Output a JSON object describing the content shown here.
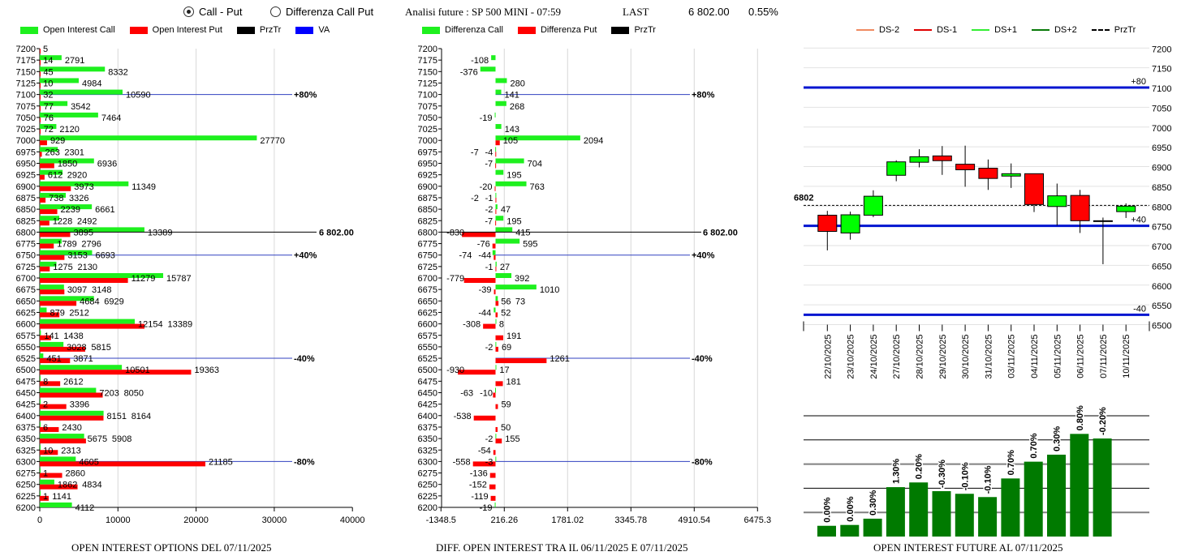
{
  "header": {
    "radio_call_put": "Call - Put",
    "radio_diff": "Differenza Call Put",
    "selected": "Call - Put",
    "analysis": "Analisi future : SP 500 MINI - 07:59",
    "last_label": "LAST",
    "last_value": "6 802.00",
    "change": "0.55%"
  },
  "colors": {
    "call": "#1ef01e",
    "put": "#ff0000",
    "przTr": "#000000",
    "va": "#0000ff",
    "ds_minus2": "#f08a60",
    "ds_minus1": "#e00000",
    "ds_plus1": "#33ee33",
    "ds_plus2": "#087a08",
    "future_bar": "#007a00"
  },
  "legend_left": [
    "Open Interest Call",
    "Open Interest Put",
    "PrzTr",
    "VA"
  ],
  "legend_mid": [
    "Differenza Call",
    "Differenza Put",
    "PrzTr"
  ],
  "legend_right": [
    "DS-2",
    "DS-1",
    "DS+1",
    "DS+2",
    "PrzTr"
  ],
  "titles": {
    "left": "OPEN INTEREST OPTIONS DEL 07/11/2025",
    "mid": "DIFF. OPEN INTEREST TRA IL 06/11/2025 E 07/11/2025",
    "right": "OPEN INTEREST FUTURE AL 07/11/2025"
  },
  "chart_data": [
    {
      "type": "bar",
      "orientation": "horizontal",
      "strikes": [
        7200,
        7175,
        7150,
        7125,
        7100,
        7075,
        7050,
        7025,
        7000,
        6975,
        6950,
        6925,
        6900,
        6875,
        6850,
        6825,
        6800,
        6775,
        6750,
        6725,
        6700,
        6675,
        6650,
        6625,
        6600,
        6575,
        6550,
        6525,
        6500,
        6475,
        6450,
        6425,
        6400,
        6375,
        6350,
        6325,
        6300,
        6275,
        6250,
        6225,
        6200
      ],
      "series": [
        {
          "name": "Open Interest Call",
          "values": [
            null,
            2791,
            8332,
            4984,
            10590,
            3542,
            7464,
            2120,
            27770,
            2301,
            6936,
            2920,
            11349,
            3326,
            6661,
            2492,
            13389,
            2796,
            6693,
            2130,
            15787,
            3097,
            6929,
            879,
            12154,
            141,
            3028,
            451,
            10501,
            8,
            7203,
            2,
            8164,
            6,
            5675,
            10,
            4605,
            1,
            1862,
            1,
            4112
          ]
        },
        {
          "name": "Open Interest Put",
          "values": [
            5,
            14,
            45,
            10,
            32,
            77,
            76,
            72,
            929,
            263,
            1850,
            612,
            3973,
            738,
            2239,
            1228,
            3895,
            1789,
            3153,
            1275,
            11279,
            3148,
            4684,
            2512,
            13389,
            1438,
            5815,
            3871,
            19363,
            2612,
            8050,
            3396,
            8151,
            2430,
            5908,
            2313,
            21185,
            2860,
            4834,
            1141,
            null
          ]
        }
      ],
      "xlim": [
        0,
        40000
      ],
      "xticks": [
        "0",
        "10000",
        "20000",
        "30000",
        "40000"
      ],
      "przTr": {
        "strike": 6800,
        "label": "6 802.00"
      },
      "va_levels": [
        {
          "strike": 7100,
          "label": "+80%"
        },
        {
          "strike": 6750,
          "label": "+40%"
        },
        {
          "strike": 6525,
          "label": "-40%"
        },
        {
          "strike": 6300,
          "label": "-80%"
        }
      ]
    },
    {
      "type": "bar",
      "orientation": "horizontal",
      "strikes": [
        7200,
        7175,
        7150,
        7125,
        7100,
        7075,
        7050,
        7025,
        7000,
        6975,
        6950,
        6925,
        6900,
        6875,
        6850,
        6825,
        6800,
        6775,
        6750,
        6725,
        6700,
        6675,
        6650,
        6625,
        6600,
        6575,
        6550,
        6525,
        6500,
        6475,
        6450,
        6425,
        6400,
        6375,
        6350,
        6325,
        6300,
        6275,
        6250,
        6225,
        6200
      ],
      "series": [
        {
          "name": "Differenza Call",
          "values": [
            null,
            -108,
            -376,
            280,
            141,
            268,
            -19,
            143,
            2094,
            -7,
            704,
            195,
            763,
            -2,
            47,
            195,
            415,
            595,
            -74,
            27,
            392,
            1010,
            56,
            -44,
            8,
            null,
            -2,
            null,
            17,
            null,
            -10,
            null,
            null,
            null,
            -2,
            null,
            -3,
            null,
            null,
            null,
            -19
          ]
        },
        {
          "name": "Differenza Put",
          "values": [
            null,
            null,
            null,
            null,
            null,
            null,
            null,
            null,
            105,
            -4,
            -7,
            null,
            -20,
            -1,
            -2,
            -7,
            -830,
            -76,
            -44,
            -1,
            -779,
            -39,
            73,
            52,
            -308,
            191,
            69,
            1261,
            -930,
            181,
            -63,
            59,
            -538,
            50,
            155,
            -54,
            -558,
            -136,
            -152,
            -119,
            null
          ]
        }
      ],
      "xlim": [
        -1348.5,
        6475.3
      ],
      "xticks": [
        "-1348.5",
        "216.26",
        "1781.02",
        "3345.78",
        "4910.54",
        "6475.3"
      ],
      "przTr": {
        "strike": 6800,
        "label": "6 802.00"
      },
      "va_levels": [
        {
          "strike": 7100,
          "label": "+80%"
        },
        {
          "strike": 6750,
          "label": "+40%"
        },
        {
          "strike": 6525,
          "label": "-40%"
        },
        {
          "strike": 6300,
          "label": "-80%"
        }
      ]
    },
    {
      "type": "candlestick",
      "dates": [
        "22/10/2025",
        "23/10/2025",
        "24/10/2025",
        "27/10/2025",
        "28/10/2025",
        "29/10/2025",
        "30/10/2025",
        "31/10/2025",
        "03/11/2025",
        "04/11/2025",
        "05/11/2025",
        "06/11/2025",
        "07/11/2025",
        "10/11/2025"
      ],
      "ohlc": [
        [
          6777,
          6788,
          6688,
          6736
        ],
        [
          6732,
          6786,
          6715,
          6778
        ],
        [
          6777,
          6840,
          6772,
          6825
        ],
        [
          6878,
          6916,
          6863,
          6912
        ],
        [
          6911,
          6944,
          6898,
          6925
        ],
        [
          6927,
          6952,
          6879,
          6915
        ],
        [
          6906,
          6953,
          6849,
          6892
        ],
        [
          6896,
          6918,
          6841,
          6870
        ],
        [
          6876,
          6908,
          6846,
          6882
        ],
        [
          6882,
          6882,
          6785,
          6804
        ],
        [
          6799,
          6857,
          6751,
          6826
        ],
        [
          6827,
          6841,
          6732,
          6763
        ],
        [
          6763,
          6771,
          6653,
          6761
        ],
        [
          6786,
          6807,
          6770,
          6800
        ]
      ],
      "ylim": [
        6500,
        7200
      ],
      "yticks": [
        "7200",
        "7150",
        "7100",
        "7050",
        "7000",
        "6950",
        "6900",
        "6850",
        "6800",
        "6750",
        "6700",
        "6650",
        "6600",
        "6550",
        "6500"
      ],
      "przTr": {
        "value": 6802,
        "label": "6802"
      },
      "va_levels": [
        {
          "value": 7100,
          "label": "+80"
        },
        {
          "value": 6750,
          "label": "+40"
        },
        {
          "value": 6525,
          "label": "-40"
        }
      ]
    },
    {
      "type": "bar",
      "bar_levels_relative": [
        8.9,
        9.6,
        14.8,
        40.9,
        44.8,
        37.6,
        35.4,
        32.7,
        48.1,
        62.0,
        67.8,
        85.0,
        81.2
      ],
      "labels": [
        "0.00%",
        "0.00%",
        "0.30%",
        "1.30%",
        "0.20%",
        "-0.30%",
        "-0.10%",
        "-0.10%",
        "0.70%",
        "0.70%",
        "0.30%",
        "0.80%",
        "-0.20%"
      ],
      "ylim": [
        0,
        100
      ],
      "grid": true
    }
  ]
}
